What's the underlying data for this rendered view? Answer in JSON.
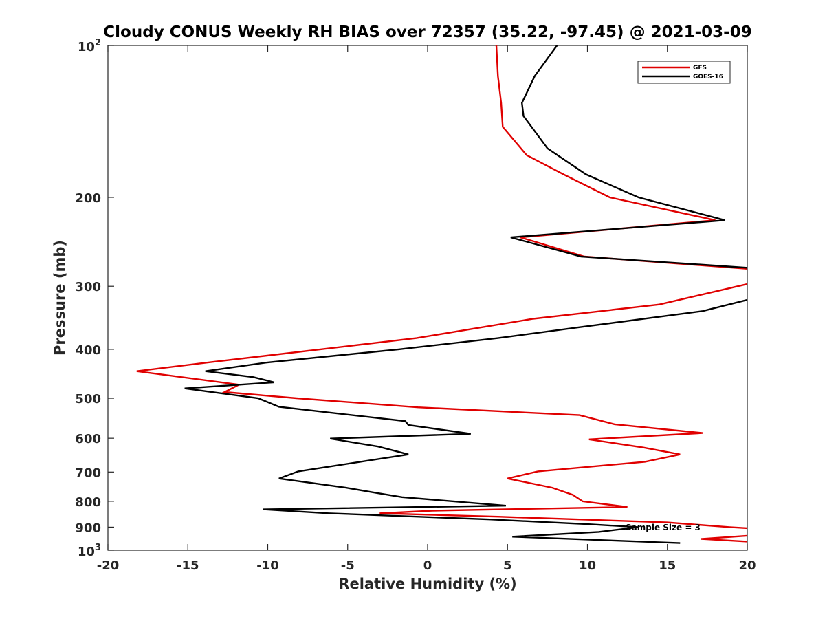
{
  "chart_data": {
    "type": "line",
    "title": "Cloudy CONUS Weekly RH BIAS over 72357 (35.22, -97.45) @ 2021-03-09",
    "xlabel": "Relative Humidity (%)",
    "ylabel": "Pressure (mb)",
    "xlim": [
      -20,
      20
    ],
    "ylim": [
      100,
      1000
    ],
    "y_scale": "log",
    "y_inverted": true,
    "x_ticks": [
      -20,
      -15,
      -10,
      -5,
      0,
      5,
      10,
      15,
      20
    ],
    "x_tick_labels": [
      "-20",
      "-15",
      "-10",
      "-5",
      "0",
      "5",
      "10",
      "15",
      "20"
    ],
    "y_ticks": [
      200,
      300,
      400,
      500,
      600,
      700,
      800,
      900
    ],
    "y_tick_labels": [
      "200",
      "300",
      "400",
      "500",
      "600",
      "700",
      "800",
      "900"
    ],
    "y_end_labels": [
      {
        "value": 100,
        "base": "10",
        "exp": "2"
      },
      {
        "value": 1000,
        "base": "10",
        "exp": "3"
      }
    ],
    "grid": false,
    "legend_position": "top-right",
    "annotation": "Sample Size = 3",
    "series": [
      {
        "name": "GFS",
        "color": "#e00000",
        "points": [
          [
            4.3,
            100
          ],
          [
            4.4,
            115
          ],
          [
            4.6,
            130
          ],
          [
            4.7,
            145
          ],
          [
            6.2,
            165
          ],
          [
            8.5,
            180
          ],
          [
            11.4,
            200
          ],
          [
            18.0,
            222
          ],
          [
            5.8,
            240
          ],
          [
            9.8,
            262
          ],
          [
            20.0,
            277
          ],
          [
            20.2,
            280
          ],
          [
            20.2,
            296
          ],
          [
            14.5,
            326
          ],
          [
            6.6,
            348
          ],
          [
            -0.7,
            380
          ],
          [
            -6.7,
            400
          ],
          [
            -13.8,
            425
          ],
          [
            -18.2,
            442
          ],
          [
            -11.8,
            470
          ],
          [
            -12.7,
            486
          ],
          [
            -8.2,
            500
          ],
          [
            -0.6,
            521
          ],
          [
            9.5,
            540
          ],
          [
            11.7,
            563
          ],
          [
            17.2,
            586
          ],
          [
            10.1,
            603
          ],
          [
            13.5,
            626
          ],
          [
            15.8,
            646
          ],
          [
            13.6,
            668
          ],
          [
            6.9,
            698
          ],
          [
            5.0,
            721
          ],
          [
            7.8,
            752
          ],
          [
            9.1,
            777
          ],
          [
            9.3,
            785
          ],
          [
            9.7,
            800
          ],
          [
            12.5,
            821
          ],
          [
            0.3,
            835
          ],
          [
            -3.0,
            845
          ],
          [
            4.4,
            858
          ],
          [
            15.0,
            881
          ],
          [
            18.9,
            900
          ],
          [
            20.2,
            905
          ],
          [
            20.2,
            935
          ],
          [
            17.1,
            950
          ],
          [
            20.2,
            962
          ]
        ]
      },
      {
        "name": "GOES-16",
        "color": "#000000",
        "points": [
          [
            8.1,
            100
          ],
          [
            6.7,
            115
          ],
          [
            5.9,
            130
          ],
          [
            6.0,
            138
          ],
          [
            7.5,
            160
          ],
          [
            9.9,
            180
          ],
          [
            13.2,
            200
          ],
          [
            18.6,
            222
          ],
          [
            5.2,
            240
          ],
          [
            9.6,
            262
          ],
          [
            20.2,
            276
          ],
          [
            20.2,
            318
          ],
          [
            17.2,
            336
          ],
          [
            9.4,
            362
          ],
          [
            4.4,
            380
          ],
          [
            -1.8,
            400
          ],
          [
            -10.1,
            425
          ],
          [
            -13.9,
            442
          ],
          [
            -10.9,
            454
          ],
          [
            -9.6,
            465
          ],
          [
            -15.2,
            478
          ],
          [
            -10.6,
            500
          ],
          [
            -9.3,
            520
          ],
          [
            -1.4,
            555
          ],
          [
            -1.2,
            565
          ],
          [
            2.7,
            588
          ],
          [
            -6.1,
            601
          ],
          [
            -3.1,
            623
          ],
          [
            -1.2,
            646
          ],
          [
            -8.1,
            698
          ],
          [
            -9.3,
            721
          ],
          [
            -5.1,
            752
          ],
          [
            -3.2,
            770
          ],
          [
            -1.6,
            785
          ],
          [
            4.9,
            816
          ],
          [
            -10.3,
            830
          ],
          [
            -6.2,
            845
          ],
          [
            3.9,
            869
          ],
          [
            10.0,
            888
          ],
          [
            13.2,
            900
          ],
          [
            10.7,
            920
          ],
          [
            5.3,
            940
          ],
          [
            15.8,
            968
          ]
        ]
      }
    ]
  }
}
